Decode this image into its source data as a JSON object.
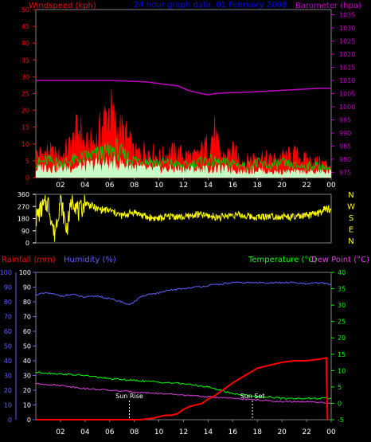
{
  "colors": {
    "background": "#000000",
    "frame": "#808080",
    "wind_speed": "#ff0000",
    "gust": "#00c800",
    "wind_avg": "#c8ffc8",
    "barometer": "#c000c0",
    "direction": "#ffff00",
    "rainfall": "#ff0000",
    "humidity": "#6060ff",
    "temperature": "#00ff00",
    "dew_point": "#e040e0",
    "sun_marker": "#ffffff",
    "title": "#0000ff",
    "compass": "#ffff00"
  },
  "chart_data": [
    {
      "type": "line",
      "title": "24 hour graph data. 01 February 2008",
      "left_axis_label": "Windspeed (kph)",
      "right_axis_label": "Barometer (hpa)",
      "x_ticks": [
        "02",
        "04",
        "06",
        "08",
        "10",
        "12",
        "14",
        "16",
        "18",
        "20",
        "22",
        "00"
      ],
      "x_range_hours": [
        0,
        24
      ],
      "left_ticks": [
        "0",
        "5",
        "10",
        "15",
        "20",
        "25",
        "30",
        "35",
        "40",
        "45",
        "50"
      ],
      "right_ticks": [
        "975",
        "980",
        "985",
        "990",
        "995",
        "1000",
        "1005",
        "1010",
        "1015",
        "1020",
        "1025",
        "1030",
        "1035"
      ],
      "left_range": [
        0,
        50
      ],
      "right_range": [
        973,
        1037
      ],
      "series": [
        {
          "role": "barometer",
          "x": [
            0,
            3,
            6,
            9,
            10.5,
            11.5,
            12,
            12.5,
            13.5,
            14,
            14.5,
            15.5,
            17,
            19,
            21,
            23,
            24
          ],
          "values": [
            1010.0,
            1010.0,
            1010.0,
            1009.5,
            1008.5,
            1008.0,
            1007.0,
            1006.0,
            1005.0,
            1004.5,
            1005.0,
            1005.3,
            1005.5,
            1006.0,
            1006.5,
            1007.0,
            1007.0
          ]
        },
        {
          "role": "wind_speed",
          "x": [
            0,
            1,
            2,
            3,
            3.5,
            4,
            5,
            5.5,
            6,
            6.5,
            7,
            7.5,
            8,
            9,
            10,
            11,
            12,
            13,
            14,
            14.5,
            15,
            16,
            17,
            18,
            19,
            20,
            21,
            22,
            23,
            24
          ],
          "values": [
            9,
            10,
            8,
            14,
            20,
            12,
            15,
            22,
            27,
            20,
            18,
            15,
            9,
            11,
            8,
            10,
            9,
            8,
            13,
            18,
            8,
            10,
            6,
            9,
            7,
            8,
            9,
            7,
            6,
            5
          ]
        },
        {
          "role": "gust",
          "x": [
            0,
            1,
            2,
            3,
            4,
            5,
            6,
            6.5,
            7,
            8,
            9,
            10,
            11,
            12,
            13,
            14,
            15,
            16,
            17,
            18,
            19,
            20,
            21,
            22,
            23,
            24
          ],
          "values": [
            5,
            6,
            5,
            6,
            7,
            8,
            9,
            10,
            8,
            6,
            6,
            5,
            5,
            4,
            5,
            6,
            5,
            5,
            4,
            5,
            4,
            5,
            4,
            4,
            4,
            3
          ]
        },
        {
          "role": "wind_avg",
          "x": [
            0,
            1,
            2,
            3,
            4,
            5,
            6,
            7,
            8,
            9,
            10,
            11,
            12,
            13,
            14,
            15,
            16,
            17,
            18,
            19,
            20,
            21,
            22,
            23,
            24
          ],
          "values": [
            3,
            4,
            3,
            4,
            4,
            5,
            5,
            5,
            4,
            3,
            3,
            3,
            3,
            3,
            3,
            3,
            3,
            2,
            3,
            2,
            2,
            2,
            2,
            2,
            2
          ]
        }
      ]
    },
    {
      "type": "line",
      "left_ticks": [
        "0",
        "90",
        "180",
        "270",
        "360"
      ],
      "left_range": [
        0,
        360
      ],
      "right_labels": [
        "N",
        "W",
        "S",
        "E",
        "N"
      ],
      "x_range_hours": [
        0,
        24
      ],
      "series": [
        {
          "role": "wind_direction",
          "x": [
            0,
            0.5,
            1,
            1.5,
            2,
            2.5,
            3,
            3.5,
            4,
            5,
            6,
            7,
            8,
            9,
            10,
            11,
            12,
            13,
            14,
            15,
            16,
            17,
            18,
            19,
            20,
            21,
            22,
            23,
            23.5,
            24
          ],
          "values": [
            180,
            260,
            300,
            60,
            320,
            100,
            340,
            220,
            300,
            250,
            240,
            200,
            230,
            190,
            180,
            200,
            190,
            210,
            200,
            190,
            210,
            200,
            190,
            200,
            195,
            190,
            200,
            220,
            250,
            250
          ]
        }
      ]
    },
    {
      "type": "line",
      "rainfall_label": "Rainfall (mm)",
      "humidity_label": "Humidity (%)",
      "temperature_label": "Temperature (°C)",
      "dew_point_label": "Dew Point (°C)",
      "x_ticks": [
        "02",
        "04",
        "06",
        "08",
        "10",
        "12",
        "14",
        "16",
        "18",
        "20",
        "22",
        "00"
      ],
      "x_range_hours": [
        0,
        24
      ],
      "left_ticks": [
        "0",
        "10",
        "20",
        "30",
        "40",
        "50",
        "60",
        "70",
        "80",
        "90",
        "100"
      ],
      "left_range": [
        0,
        100
      ],
      "right_ticks": [
        "-5",
        "0",
        "5",
        "10",
        "15",
        "20",
        "25",
        "30",
        "35",
        "40"
      ],
      "right_range": [
        -5,
        40
      ],
      "sunrise_label": "Sun Rise",
      "sunset_label": "Sun Set",
      "sunrise_hour": 7.6,
      "sunset_hour": 17.6,
      "series": [
        {
          "role": "rainfall",
          "x": [
            0,
            7.5,
            8.5,
            9.5,
            10.5,
            11,
            11.5,
            12,
            12.5,
            13,
            13.5,
            14,
            14.5,
            15,
            15.5,
            16,
            17,
            18,
            19,
            20,
            21,
            22,
            23,
            23.6,
            23.7
          ],
          "values": [
            0,
            0,
            0,
            1,
            3,
            3,
            4,
            7,
            9,
            10,
            11,
            14,
            16,
            19,
            22,
            25,
            30,
            35,
            37,
            39,
            40,
            40,
            41,
            42,
            0
          ]
        },
        {
          "role": "humidity",
          "x": [
            0,
            1,
            2,
            3,
            4,
            5,
            6,
            7,
            7.5,
            8,
            8.5,
            9,
            10,
            11,
            12,
            13,
            14,
            15,
            16,
            17,
            18,
            19,
            20,
            21,
            22,
            23,
            24
          ],
          "values": [
            85,
            86,
            84,
            85,
            83,
            84,
            82,
            80,
            78,
            80,
            83,
            85,
            86,
            88,
            89,
            90,
            91,
            92,
            93,
            93,
            93,
            93,
            93,
            93,
            92,
            93,
            92
          ]
        },
        {
          "role": "temperature",
          "x": [
            0,
            2,
            4,
            6,
            8,
            10,
            12,
            13,
            14,
            15,
            16,
            17,
            18,
            19,
            20,
            21,
            22,
            23,
            24
          ],
          "values": [
            9.5,
            9,
            8.5,
            7.5,
            7,
            6.5,
            6,
            5.5,
            5,
            4,
            3,
            2.5,
            2,
            2,
            1.5,
            1.5,
            1.5,
            1.5,
            1.5
          ]
        },
        {
          "role": "dew_point",
          "x": [
            0,
            2,
            4,
            6,
            8,
            10,
            12,
            14,
            16,
            18,
            20,
            22,
            24
          ],
          "values": [
            6,
            5.5,
            4.5,
            4,
            3.5,
            3,
            2.5,
            2,
            1.5,
            1,
            0.5,
            0.5,
            0
          ]
        }
      ]
    }
  ]
}
